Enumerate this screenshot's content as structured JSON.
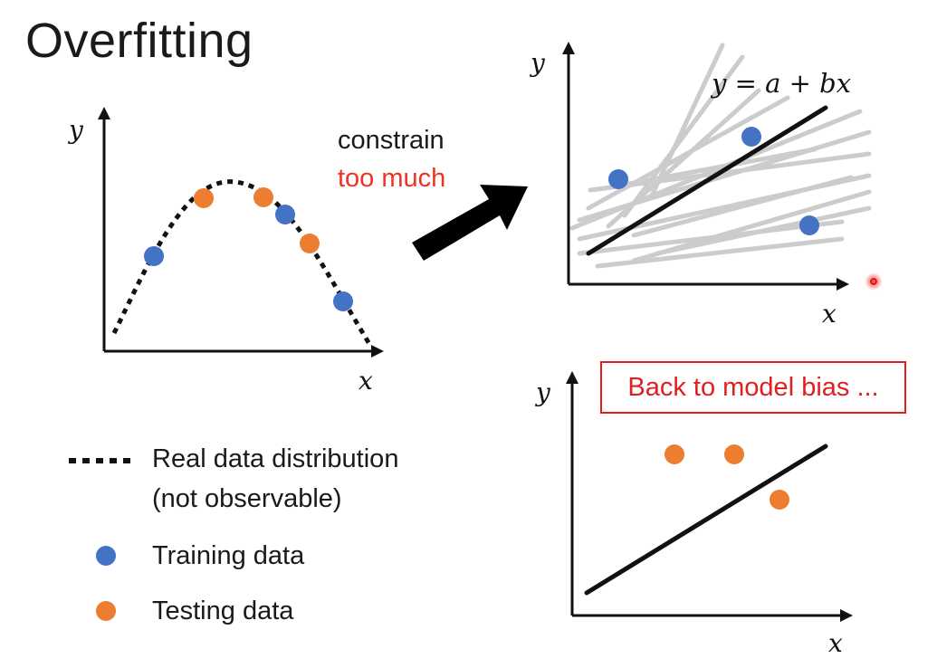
{
  "title": "Overfitting",
  "constrain": {
    "line1": "constrain",
    "line2": "too much"
  },
  "model_bias": "Back to model bias ...",
  "equation": "y = a + bx",
  "legend": {
    "real": "Real data distribution",
    "real_note": "(not observable)",
    "training": "Training data",
    "testing": "Testing data"
  },
  "axis_labels": {
    "x": "x",
    "y": "y"
  },
  "colors": {
    "training": "#4472c4",
    "testing": "#ed7d31",
    "gray_lines": "#cccccc",
    "accent_red": "#e02020"
  },
  "chart_data": [
    {
      "type": "scatter",
      "xlabel": "x",
      "ylabel": "y",
      "curve": "dotted",
      "series": [
        {
          "name": "Training data",
          "points": [
            [
              1.3,
              2.5
            ],
            [
              4.5,
              3.9
            ],
            [
              6.2,
              1.0
            ]
          ]
        },
        {
          "name": "Testing data",
          "points": [
            [
              2.7,
              4.4
            ],
            [
              4.1,
              4.4
            ],
            [
              5.1,
              3.0
            ]
          ]
        }
      ]
    },
    {
      "type": "scatter",
      "xlabel": "x",
      "ylabel": "y",
      "fit_line": "y = a + bx",
      "series": [
        {
          "name": "Training data",
          "points": [
            [
              1.3,
              2.5
            ],
            [
              4.5,
              3.9
            ],
            [
              6.2,
              1.0
            ]
          ]
        }
      ]
    },
    {
      "type": "scatter",
      "xlabel": "x",
      "ylabel": "y",
      "series": [
        {
          "name": "Testing data",
          "points": [
            [
              2.7,
              4.4
            ],
            [
              4.1,
              4.4
            ],
            [
              5.1,
              3.0
            ]
          ]
        }
      ]
    }
  ]
}
